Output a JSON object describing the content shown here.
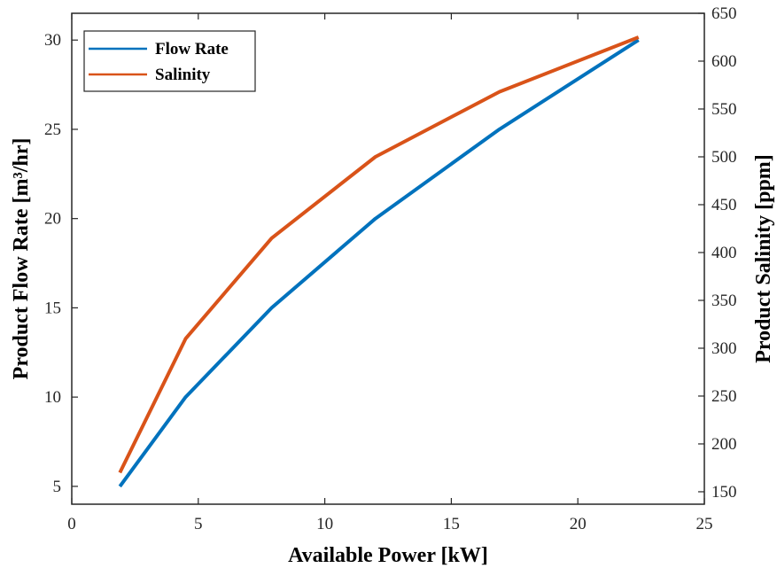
{
  "chart_data": {
    "type": "line",
    "xlabel": "Available Power [kW]",
    "ylabel": "Product Flow Rate [m³/hr]",
    "ylabel_right": "Product Salinity [ppm]",
    "xlim": [
      0,
      25
    ],
    "ylim": [
      4,
      31.5
    ],
    "ylim_right": [
      137,
      650
    ],
    "x_ticks": [
      0,
      5,
      10,
      15,
      20,
      25
    ],
    "y_ticks": [
      5,
      10,
      15,
      20,
      25,
      30
    ],
    "y_ticks_right": [
      150,
      200,
      250,
      300,
      350,
      400,
      450,
      500,
      550,
      600,
      650
    ],
    "grid": false,
    "legend_position": "top-left",
    "series": [
      {
        "name": "Flow Rate",
        "axis": "left",
        "color": "#0072BD",
        "x": [
          1.9,
          4.5,
          7.9,
          12.0,
          16.9,
          22.4
        ],
        "y": [
          5,
          10,
          15,
          20,
          25,
          30
        ]
      },
      {
        "name": "Salinity",
        "axis": "right",
        "color": "#D95319",
        "x": [
          1.9,
          4.5,
          7.9,
          12.0,
          16.9,
          22.4
        ],
        "y": [
          170,
          310,
          415,
          500,
          568,
          625
        ]
      }
    ]
  }
}
